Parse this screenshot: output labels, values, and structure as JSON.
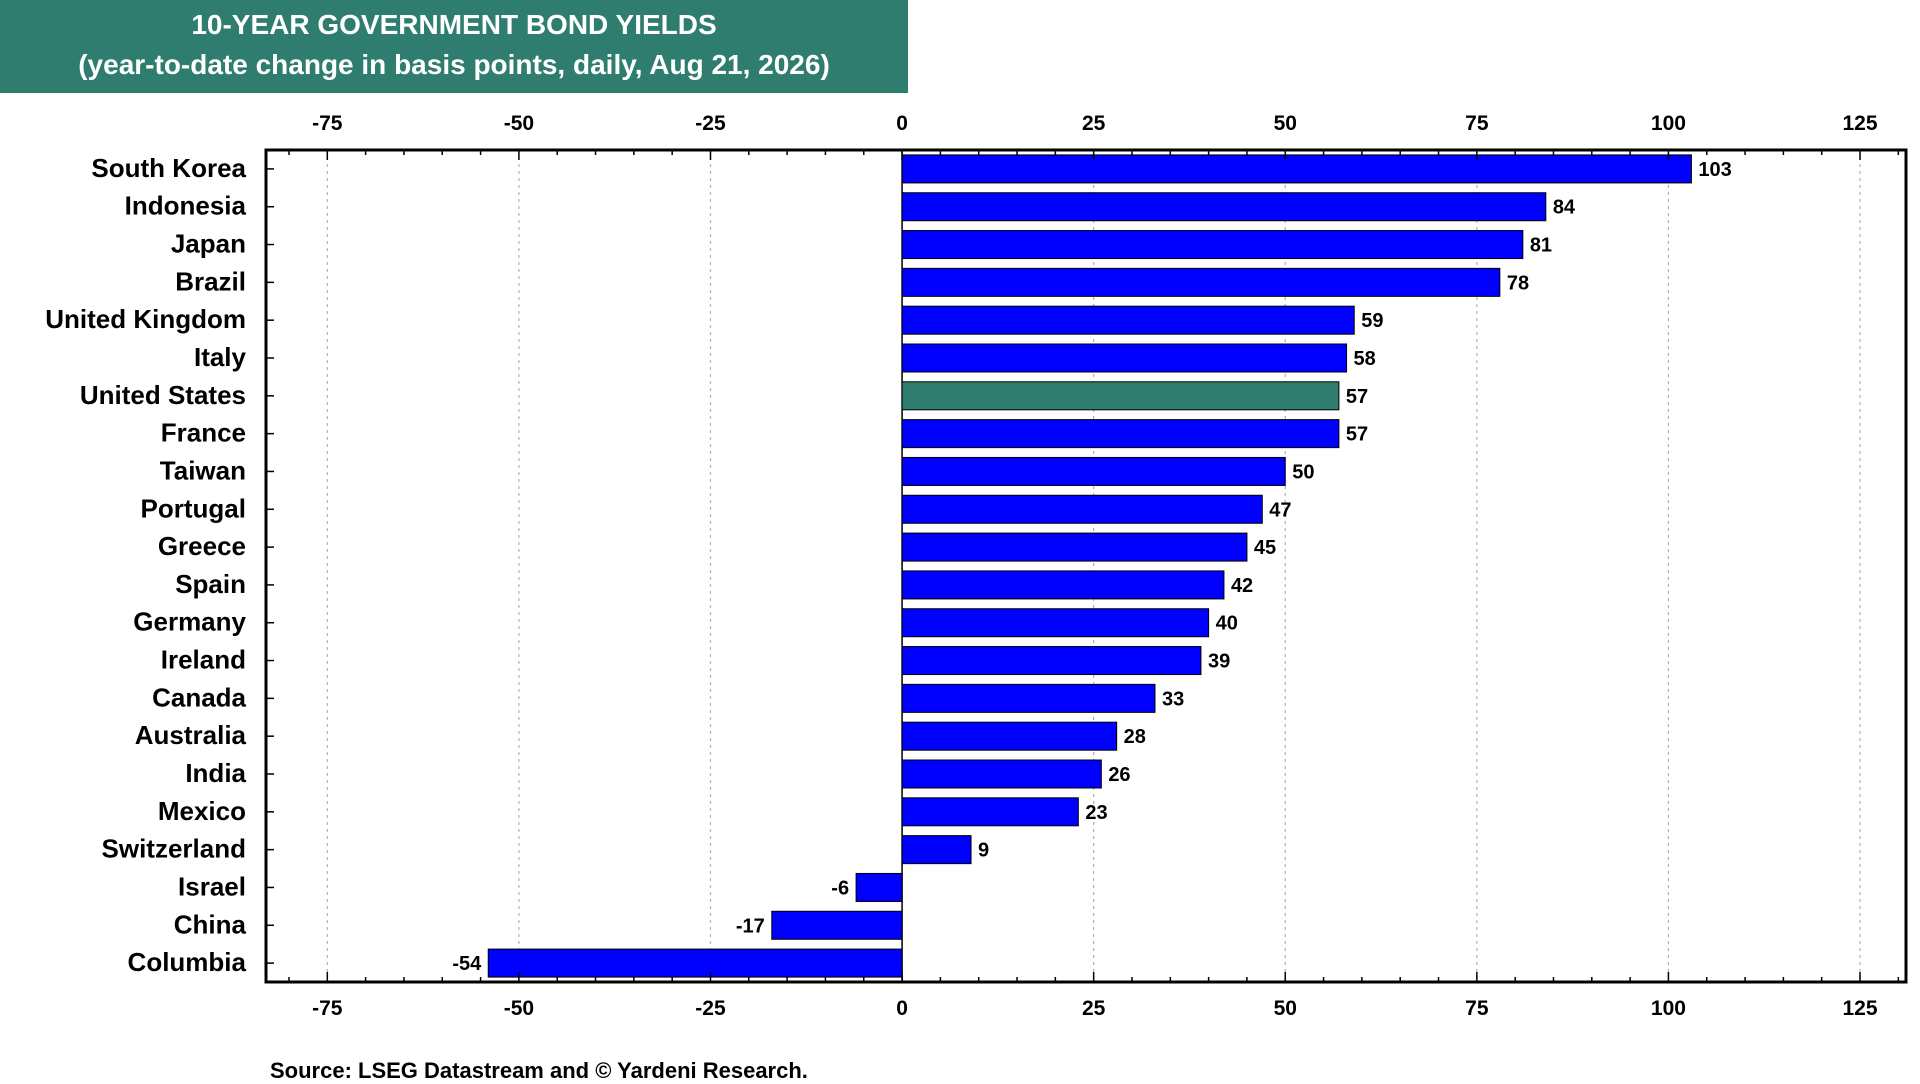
{
  "header": {
    "title": "10-YEAR GOVERNMENT BOND YIELDS",
    "subtitle": "(year-to-date change in basis points, daily, Aug 21, 2026)"
  },
  "footer": {
    "source": "Source: LSEG Datastream and © Yardeni Research."
  },
  "chart_data": {
    "type": "bar",
    "orientation": "horizontal",
    "title": "10-YEAR GOVERNMENT BOND YIELDS",
    "subtitle": "(year-to-date change in basis points, daily, Aug 21, 2026)",
    "xlim": [
      -83,
      131
    ],
    "x_ticks": [
      -75,
      -50,
      -25,
      0,
      25,
      50,
      75,
      100,
      125
    ],
    "x_tick_labels": [
      "-75",
      "-50",
      "-25",
      "0",
      "25",
      "50",
      "75",
      "100",
      "125"
    ],
    "x_axis_labels_top_and_bottom": true,
    "grid": true,
    "categories": [
      "South Korea",
      "Indonesia",
      "Japan",
      "Brazil",
      "United Kingdom",
      "Italy",
      "United States",
      "France",
      "Taiwan",
      "Portugal",
      "Greece",
      "Spain",
      "Germany",
      "Ireland",
      "Canada",
      "Australia",
      "India",
      "Mexico",
      "Switzerland",
      "Israel",
      "China",
      "Columbia"
    ],
    "values": [
      103,
      84,
      81,
      78,
      59,
      58,
      57,
      57,
      50,
      47,
      45,
      42,
      40,
      39,
      33,
      28,
      26,
      23,
      9,
      -6,
      -17,
      -54
    ],
    "value_labels": [
      "103",
      "84",
      "81",
      "78",
      "59",
      "58",
      "57",
      "57",
      "50",
      "47",
      "45",
      "42",
      "40",
      "39",
      "33",
      "28",
      "26",
      "23",
      "9",
      "-6",
      "-17",
      "-54"
    ],
    "bar_color": "#0000ff",
    "highlight_category": "United States",
    "highlight_color": "#2e7d6e"
  }
}
